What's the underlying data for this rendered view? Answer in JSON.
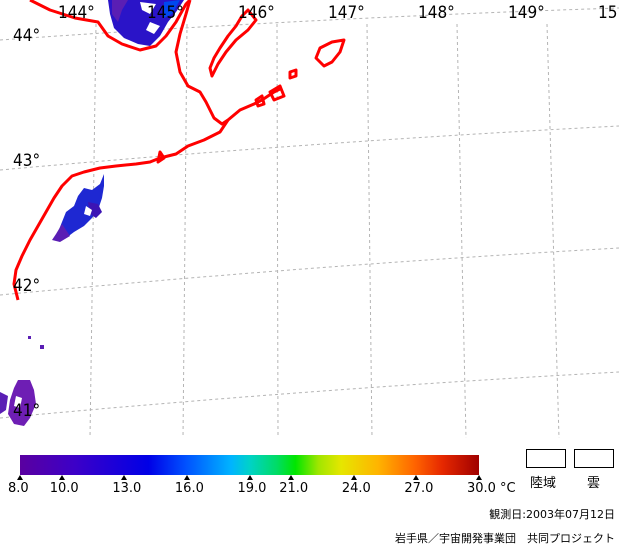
{
  "map": {
    "lon_labels": [
      "144°",
      "145°",
      "146°",
      "147°",
      "148°",
      "149°",
      "15"
    ],
    "lat_labels": [
      "44°",
      "43°",
      "42°",
      "41°"
    ],
    "coast_color": "#ff0000",
    "grid_color": "#b4b4b4"
  },
  "legend": {
    "ticks": [
      "8.0",
      "10.0",
      "13.0",
      "16.0",
      "19.0",
      "21.0",
      "24.0",
      "27.0",
      "30.0"
    ],
    "unit": "°C",
    "land_label": "陸域",
    "cloud_label": "雲",
    "observation_date": "観測日:2003年07月12日",
    "credit": "岩手県／宇宙開発事業団　共同プロジェクト"
  }
}
